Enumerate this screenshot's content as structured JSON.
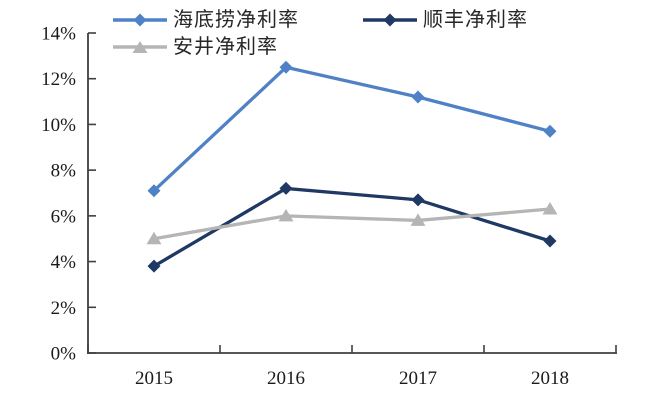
{
  "chart_data": {
    "type": "line",
    "title": "",
    "xlabel": "",
    "ylabel": "",
    "x": [
      "2015",
      "2016",
      "2017",
      "2018"
    ],
    "series": [
      {
        "name": "海底捞净利率",
        "values": [
          7.1,
          12.5,
          11.2,
          9.7
        ],
        "color": "#4F81C7",
        "marker": "diamond"
      },
      {
        "name": "顺丰净利率",
        "values": [
          3.8,
          7.2,
          6.7,
          4.9
        ],
        "color": "#1F3864",
        "marker": "diamond"
      },
      {
        "name": "安井净利率",
        "values": [
          5.0,
          6.0,
          5.8,
          6.3
        ],
        "color": "#B5B5B5",
        "marker": "triangle"
      }
    ],
    "ylim": [
      0,
      14
    ],
    "ytick_step": 2,
    "ytick_labels": [
      "0%",
      "2%",
      "4%",
      "6%",
      "8%",
      "10%",
      "12%",
      "14%"
    ],
    "grid": false,
    "legend_position": "top-left",
    "axis_color": "#3F3F3F",
    "tick_label_color": "#1A1A1A"
  }
}
